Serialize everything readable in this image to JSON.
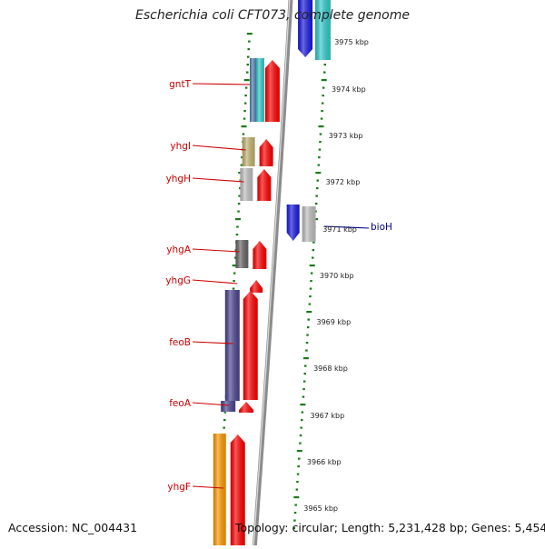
{
  "title": "Escherichia coli CFT073, complete genome",
  "footer": {
    "accession": "Accession: NC_004431",
    "topology": "Topology: circular; Length: 5,231,428 bp; Genes: 5,454"
  },
  "ruler_labels": [
    "3975 kbp",
    "3974 kbp",
    "3973 kbp",
    "3972 kbp",
    "3971 kbp",
    "3970 kbp",
    "3969 kbp",
    "3968 kbp",
    "3967 kbp",
    "3966 kbp",
    "3965 kbp"
  ],
  "gene_labels_left": [
    "gntT",
    "yhgI",
    "yhgH",
    "yhgA",
    "yhgG",
    "feoB",
    "feoA",
    "yhgF"
  ],
  "gene_labels_right": [
    "bioH"
  ],
  "colors": {
    "backbone": "#8c8c8c",
    "tick": "#1a7a1a",
    "left_label": "#cc0000",
    "right_label": "#00008b",
    "cds": "#ff0000",
    "gene_blue": "#1a1ae0",
    "gene_cyan": "#33cccc",
    "gene_steel": "#4d7fae",
    "gene_khaki": "#c2b470",
    "gene_silver": "#c0c0c0",
    "gene_darkgray": "#666666",
    "gene_slate": "#4a4590",
    "gene_orange": "#ff9900"
  }
}
